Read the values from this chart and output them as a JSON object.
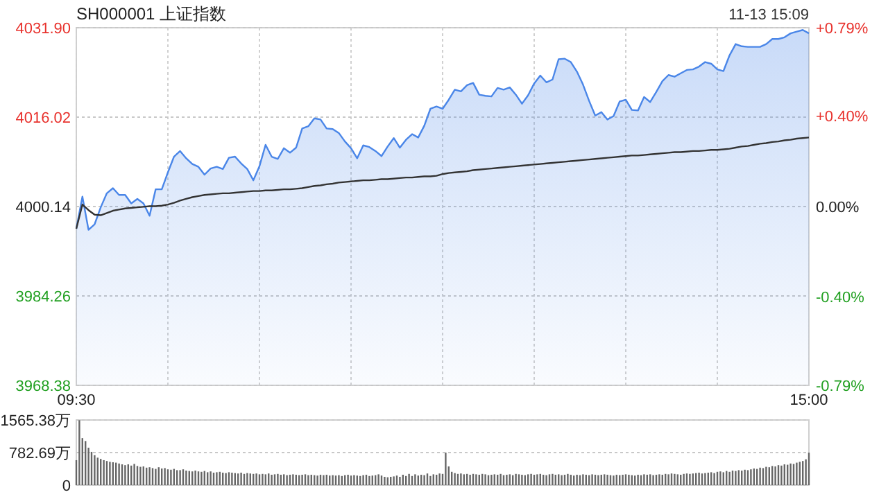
{
  "chart_data": [
    {
      "type": "area",
      "title": "SH000001 上证指数",
      "annotations": [
        "11-13 15:09"
      ],
      "categories": [
        "09:30",
        null,
        null,
        null,
        null,
        null,
        null,
        null,
        null,
        null,
        null,
        null,
        null,
        null,
        null,
        null,
        null,
        null,
        null,
        null,
        null,
        null,
        null,
        null,
        null,
        null,
        null,
        null,
        null,
        null,
        null,
        null,
        null,
        null,
        null,
        null,
        null,
        null,
        null,
        null,
        null,
        null,
        null,
        null,
        null,
        null,
        null,
        null,
        null,
        null,
        null,
        null,
        null,
        null,
        null,
        null,
        null,
        null,
        null,
        null,
        null,
        null,
        null,
        null,
        null,
        null,
        null,
        null,
        null,
        null,
        null,
        null,
        null,
        null,
        null,
        null,
        null,
        null,
        null,
        null,
        null,
        null,
        null,
        null,
        null,
        null,
        null,
        null,
        null,
        null,
        null,
        null,
        null,
        null,
        null,
        null,
        null,
        null,
        null,
        null,
        null,
        null,
        null,
        null,
        null,
        null,
        null,
        null,
        null,
        null,
        null,
        null,
        null,
        null,
        null,
        null,
        null,
        null,
        null,
        null,
        "15:00"
      ],
      "ylim": [
        3968.38,
        4031.9
      ],
      "yticks": [
        3968.38,
        3984.26,
        4000.14,
        4016.02,
        {
          "value": 4031.9,
          "label": "4031.90"
        }
      ],
      "y2lim": [
        -0.79,
        0.79
      ],
      "y2ticks": [
        {
          "value": -0.79,
          "label": "-0.79%"
        },
        {
          "value": -0.4,
          "label": "-0.40%"
        },
        {
          "value": 0,
          "label": "0.00%"
        },
        {
          "value": 0.4,
          "label": "+0.40%"
        },
        {
          "value": 0.79,
          "label": "+0.79%"
        }
      ],
      "grid": true,
      "series": [
        {
          "color": "#4a86e8",
          "values": [
            3996.2,
            4001.9,
            3996,
            3997,
            4000,
            4002.5,
            4003.4,
            4002.2,
            4002.2,
            4000.7,
            4001.5,
            4000.7,
            3998.5,
            4003.2,
            4003.2,
            4006.2,
            4009,
            4010,
            4008.7,
            4007.7,
            4007.2,
            4005.8,
            4006.9,
            4007.2,
            4006.8,
            4008.8,
            4009,
            4007.8,
            4006.8,
            4004.8,
            4007.3,
            4011.1,
            4009,
            4008.6,
            4010.5,
            4009.7,
            4010.6,
            4014,
            4014.4,
            4015.8,
            4015.6,
            4014,
            4013.9,
            4013.2,
            4011.7,
            4010.5,
            4008.7,
            4011,
            4010.7,
            4010,
            4009.1,
            4010.8,
            4012.3,
            4010.6,
            4012,
            4013,
            4012.4,
            4014.5,
            4017.5,
            4017.9,
            4017.5,
            4019.1,
            4020.9,
            4020.6,
            4021.7,
            4022.1,
            4020,
            4019.8,
            4019.7,
            4021.2,
            4020.9,
            4021.3,
            4020,
            4018.4,
            4019.9,
            4022,
            4023.4,
            4022.2,
            4022.7,
            4026.3,
            4026.4,
            4025.8,
            4024.1,
            4021.8,
            4018.9,
            4016.3,
            4016.9,
            4015.6,
            4016.2,
            4018.8,
            4019.1,
            4017.3,
            4017.2,
            4019.6,
            4018.7,
            4020.5,
            4022.4,
            4023.5,
            4023.2,
            4023.8,
            4024.4,
            4024.5,
            4025,
            4025.8,
            4025.5,
            4024.5,
            4024.2,
            4027,
            4029,
            4028.6,
            4028.5,
            4028.5,
            4028.5,
            4029,
            4029.9,
            4029.9,
            4030.2,
            4030.9,
            4031.2,
            4031.5,
            4030.9
          ]
        },
        {
          "type": "line",
          "color": "#333333",
          "values": [
            3996.2,
            4000.5,
            3999.5,
            3998.7,
            3998.6,
            3999.0,
            3999.4,
            3999.6,
            3999.8,
            3999.9,
            4000.0,
            4000.1,
            4000.2,
            4000.2,
            4000.3,
            4000.5,
            4000.8,
            4001.2,
            4001.5,
            4001.8,
            4002.0,
            4002.2,
            4002.3,
            4002.4,
            4002.5,
            4002.5,
            4002.6,
            4002.7,
            4002.8,
            4002.9,
            4002.9,
            4003.0,
            4003.0,
            4003.1,
            4003.2,
            4003.2,
            4003.3,
            4003.4,
            4003.6,
            4003.8,
            4003.9,
            4004.1,
            4004.2,
            4004.4,
            4004.5,
            4004.6,
            4004.7,
            4004.8,
            4004.8,
            4004.9,
            4005.0,
            4005.0,
            4005.1,
            4005.2,
            4005.3,
            4005.3,
            4005.4,
            4005.5,
            4005.5,
            4005.6,
            4005.9,
            4006.1,
            4006.2,
            4006.3,
            4006.4,
            4006.6,
            4006.7,
            4006.8,
            4006.9,
            4007.0,
            4007.1,
            4007.2,
            4007.3,
            4007.4,
            4007.5,
            4007.6,
            4007.7,
            4007.8,
            4007.9,
            4008.0,
            4008.1,
            4008.2,
            4008.3,
            4008.4,
            4008.5,
            4008.6,
            4008.7,
            4008.8,
            4008.9,
            4009.0,
            4009.1,
            4009.2,
            4009.2,
            4009.3,
            4009.4,
            4009.5,
            4009.6,
            4009.7,
            4009.8,
            4009.8,
            4009.9,
            4010.0,
            4010.0,
            4010.1,
            4010.2,
            4010.2,
            4010.3,
            4010.4,
            4010.6,
            4010.8,
            4010.9,
            4011.1,
            4011.3,
            4011.4,
            4011.6,
            4011.7,
            4011.9,
            4012.0,
            4012.2,
            4012.3,
            4012.4
          ]
        }
      ]
    },
    {
      "type": "bar",
      "color": "#666666",
      "tick_labels": "y",
      "grid": "y",
      "ylim": [
        0,
        1565.38
      ],
      "yticks": [
        0,
        {
          "value": 782.69,
          "label": "782.69万"
        },
        {
          "value": 1565.38,
          "label": "1565.38万"
        }
      ],
      "categories": [
        null,
        null,
        null,
        null,
        null,
        null,
        null,
        null,
        null,
        null,
        null,
        null,
        null,
        null,
        null,
        null,
        null,
        null,
        null,
        null,
        null,
        null,
        null,
        null,
        null,
        null,
        null,
        null,
        null,
        null,
        null,
        null,
        null,
        null,
        null,
        null,
        null,
        null,
        null,
        null,
        null,
        null,
        null,
        null,
        null,
        null,
        null,
        null,
        null,
        null,
        null,
        null,
        null,
        null,
        null,
        null,
        null,
        null,
        null,
        null,
        null,
        null,
        null,
        null,
        null,
        null,
        null,
        null,
        null,
        null,
        null,
        null,
        null,
        null,
        null,
        null,
        null,
        null,
        null,
        null,
        null,
        null,
        null,
        null,
        null,
        null,
        null,
        null,
        null,
        null,
        null,
        null,
        null,
        null,
        null,
        null,
        null,
        null,
        null,
        null,
        null,
        null,
        null,
        null,
        null,
        null,
        null,
        null,
        null,
        null,
        null,
        null,
        null,
        null,
        null,
        null,
        null,
        null,
        null,
        null,
        null,
        null,
        null,
        null,
        null,
        null,
        null,
        null,
        null,
        null,
        null,
        null,
        null,
        null,
        null,
        null,
        null,
        null,
        null,
        null,
        null,
        null,
        null,
        null,
        null,
        null,
        null,
        null,
        null,
        null,
        null,
        null,
        null,
        null,
        null,
        null,
        null,
        null,
        null,
        null,
        null,
        null,
        null,
        null,
        null,
        null,
        null,
        null,
        null,
        null,
        null,
        null,
        null,
        null,
        null,
        null,
        null,
        null,
        null,
        null,
        null,
        null,
        null,
        null,
        null,
        null,
        null,
        null,
        null,
        null,
        null,
        null,
        null,
        null,
        null,
        null,
        null,
        null,
        null,
        null,
        null,
        null,
        null,
        null,
        null,
        null,
        null,
        null,
        null,
        null,
        null,
        null,
        null,
        null,
        null,
        null,
        null,
        null,
        null,
        null,
        null,
        null,
        null,
        null,
        null,
        null,
        null,
        null,
        null,
        null,
        null,
        null,
        null,
        null,
        null,
        null,
        null,
        null,
        null,
        null,
        null
      ],
      "values": [
        600,
        1560,
        1130,
        1060,
        900,
        800,
        720,
        660,
        630,
        600,
        580,
        560,
        550,
        540,
        520,
        500,
        480,
        500,
        470,
        510,
        460,
        440,
        450,
        420,
        430,
        410,
        390,
        430,
        400,
        410,
        380,
        370,
        390,
        360,
        360,
        380,
        350,
        340,
        330,
        350,
        330,
        320,
        340,
        310,
        330,
        300,
        310,
        320,
        300,
        290,
        310,
        300,
        290,
        280,
        300,
        270,
        290,
        280,
        270,
        280,
        260,
        270,
        260,
        280,
        250,
        260,
        270,
        250,
        260,
        240,
        250,
        260,
        250,
        240,
        250,
        260,
        240,
        250,
        240,
        230,
        250,
        240,
        250,
        230,
        240,
        230,
        240,
        220,
        240,
        250,
        230,
        240,
        230,
        220,
        240,
        250,
        220,
        230,
        240,
        260,
        230,
        200,
        190,
        200,
        210,
        230,
        200,
        250,
        220,
        270,
        220,
        260,
        230,
        250,
        240,
        280,
        220,
        260,
        250,
        280,
        270,
        780,
        450,
        320,
        290,
        270,
        280,
        260,
        270,
        250,
        270,
        260,
        250,
        270,
        260,
        240,
        250,
        260,
        250,
        270,
        240,
        250,
        260,
        240,
        270,
        260,
        250,
        240,
        260,
        270,
        250,
        260,
        270,
        250,
        240,
        260,
        270,
        250,
        260,
        240,
        250,
        270,
        250,
        230,
        250,
        240,
        260,
        250,
        240,
        260,
        250,
        240,
        250,
        260,
        250,
        240,
        230,
        250,
        240,
        250,
        260,
        250,
        240,
        230,
        250,
        240,
        260,
        250,
        260,
        240,
        250,
        260,
        250,
        270,
        260,
        280,
        270,
        260,
        250,
        270,
        280,
        270,
        280,
        290,
        300,
        280,
        290,
        300,
        310,
        290,
        320,
        330,
        310,
        340,
        320,
        350,
        340,
        360,
        350,
        370,
        360,
        380,
        400,
        390,
        420,
        410,
        440,
        430,
        460,
        450,
        480,
        470,
        500,
        490,
        520,
        510,
        540,
        560,
        580,
        620,
        780
      ]
    }
  ]
}
